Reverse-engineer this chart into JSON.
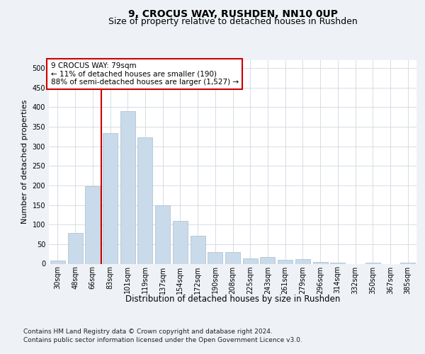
{
  "title": "9, CROCUS WAY, RUSHDEN, NN10 0UP",
  "subtitle": "Size of property relative to detached houses in Rushden",
  "xlabel": "Distribution of detached houses by size in Rushden",
  "ylabel": "Number of detached properties",
  "categories": [
    "30sqm",
    "48sqm",
    "66sqm",
    "83sqm",
    "101sqm",
    "119sqm",
    "137sqm",
    "154sqm",
    "172sqm",
    "190sqm",
    "208sqm",
    "225sqm",
    "243sqm",
    "261sqm",
    "279sqm",
    "296sqm",
    "314sqm",
    "332sqm",
    "350sqm",
    "367sqm",
    "385sqm"
  ],
  "values": [
    8,
    78,
    198,
    333,
    390,
    322,
    149,
    109,
    72,
    30,
    30,
    13,
    18,
    10,
    12,
    5,
    3,
    0,
    3,
    0,
    3
  ],
  "bar_color": "#c9daea",
  "bar_edge_color": "#aabccc",
  "vline_x": 2.5,
  "vline_color": "#cc0000",
  "annotation_text": "9 CROCUS WAY: 79sqm\n← 11% of detached houses are smaller (190)\n88% of semi-detached houses are larger (1,527) →",
  "annotation_box_color": "#ffffff",
  "annotation_box_edge_color": "#cc0000",
  "ylim": [
    0,
    520
  ],
  "yticks": [
    0,
    50,
    100,
    150,
    200,
    250,
    300,
    350,
    400,
    450,
    500
  ],
  "bg_color": "#eef2f6",
  "plot_bg_color": "#ffffff",
  "footer_line1": "Contains HM Land Registry data © Crown copyright and database right 2024.",
  "footer_line2": "Contains public sector information licensed under the Open Government Licence v3.0.",
  "grid_color": "#d0d8e0",
  "title_fontsize": 10,
  "subtitle_fontsize": 9,
  "tick_fontsize": 7,
  "ylabel_fontsize": 8,
  "xlabel_fontsize": 8.5,
  "annotation_fontsize": 7.5,
  "footer_fontsize": 6.5
}
